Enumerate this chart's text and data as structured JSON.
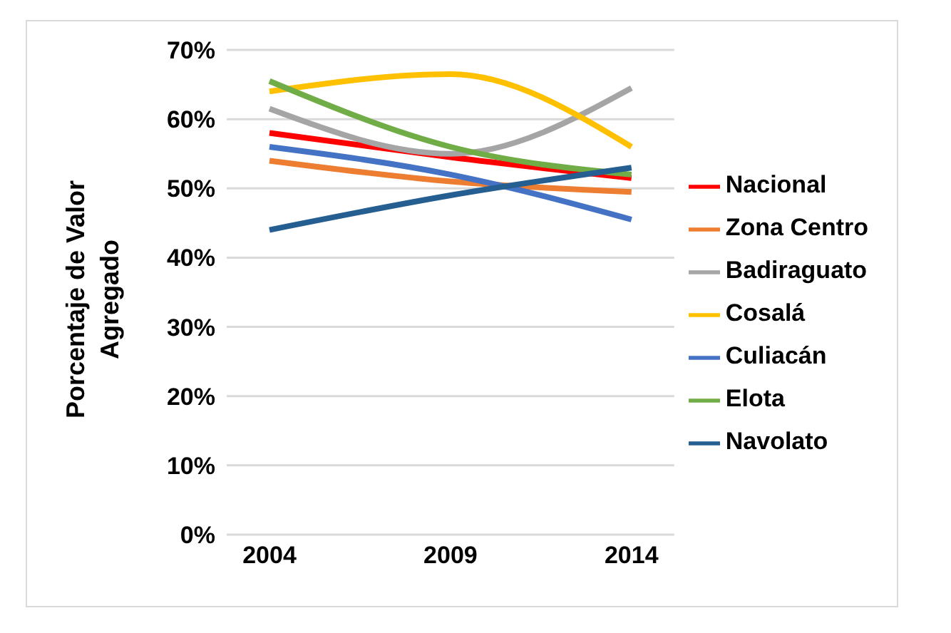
{
  "chart_data": {
    "type": "line",
    "ylabel": "Porcentaje de Valor Agregado",
    "categories": [
      "2004",
      "2009",
      "2014"
    ],
    "series": [
      {
        "name": "Nacional",
        "color": "#ff0000",
        "values": [
          58,
          54.5,
          51.5
        ]
      },
      {
        "name": "Zona Centro",
        "color": "#ed7d31",
        "values": [
          54,
          51,
          49.5
        ]
      },
      {
        "name": "Badiraguato",
        "color": "#a5a5a5",
        "values": [
          61.5,
          55,
          64.5
        ]
      },
      {
        "name": "Cosalá",
        "color": "#ffc000",
        "values": [
          64,
          66.5,
          56
        ]
      },
      {
        "name": "Culiacán",
        "color": "#4472c4",
        "values": [
          56,
          52,
          45.5
        ]
      },
      {
        "name": "Elota",
        "color": "#70ad47",
        "values": [
          65.5,
          56,
          52
        ]
      },
      {
        "name": "Navolato",
        "color": "#255e91",
        "values": [
          44,
          49,
          53
        ]
      }
    ],
    "ylim": [
      0,
      70
    ],
    "yticks": [
      {
        "value": 0,
        "label": "0%"
      },
      {
        "value": 10,
        "label": "10%"
      },
      {
        "value": 20,
        "label": "20%"
      },
      {
        "value": 30,
        "label": "30%"
      },
      {
        "value": 40,
        "label": "40%"
      },
      {
        "value": 50,
        "label": "50%"
      },
      {
        "value": 60,
        "label": "60%"
      },
      {
        "value": 70,
        "label": "70%"
      }
    ],
    "grid": "y",
    "legend": "right",
    "marker": "none",
    "line_style": "solid"
  }
}
